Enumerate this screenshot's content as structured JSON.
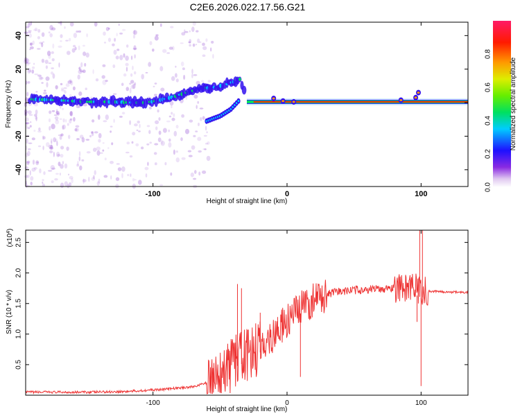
{
  "title": "C2E6.2026.022.17.56.G21",
  "chart_data": [
    {
      "type": "heatmap",
      "xlabel": "Height of straight line (km)",
      "ylabel": "Frequency (Hz)",
      "xlim": [
        -195,
        135
      ],
      "ylim": [
        -50,
        48
      ],
      "xticks": [
        -100,
        0,
        100
      ],
      "xtick_labels": [
        "-100",
        "0",
        "100"
      ],
      "yticks": [
        40,
        20,
        0,
        -20,
        -40
      ],
      "ytick_labels": [
        "40",
        "20",
        "0",
        "-20",
        "-40"
      ],
      "main_band": [
        [
          -190,
          2
        ],
        [
          -170,
          1.5
        ],
        [
          -150,
          0.5
        ],
        [
          -130,
          0.5
        ],
        [
          -115,
          0
        ],
        [
          -105,
          0
        ],
        [
          -95,
          1.5
        ],
        [
          -85,
          3.5
        ],
        [
          -75,
          6
        ],
        [
          -65,
          8.5
        ],
        [
          -55,
          9
        ],
        [
          -45,
          11
        ],
        [
          -35,
          14
        ],
        [
          -30,
          2
        ],
        [
          -20,
          1
        ],
        [
          -10,
          1
        ],
        [
          0,
          0.5
        ],
        [
          10,
          0.5
        ],
        [
          60,
          0.5
        ],
        [
          100,
          0.5
        ],
        [
          130,
          0.5
        ]
      ],
      "side_branch": [
        [
          -60,
          -11
        ],
        [
          -50,
          -8
        ],
        [
          -42,
          -4
        ],
        [
          -35,
          2
        ]
      ],
      "colorbar": {
        "label": "Normalized spectral amplitude",
        "ticks": [
          0.0,
          0.2,
          0.4,
          0.6,
          0.8
        ],
        "tick_labels": [
          "0.0",
          "0.2",
          "0.4",
          "0.6",
          "0.8"
        ],
        "range": [
          0,
          1
        ]
      }
    },
    {
      "type": "line",
      "xlabel": "Height of straight line (km)",
      "ylabel": "SNR (10 * v/v)",
      "ylabel_multiplier": "(x10",
      "ylabel_multiplier_exp": "4",
      "ylabel_multiplier_close": ")",
      "xlim": [
        -195,
        135
      ],
      "ylim": [
        0,
        2.7
      ],
      "xticks": [
        -100,
        0,
        100
      ],
      "xtick_labels": [
        "-100",
        "0",
        "100"
      ],
      "yticks": [
        0.5,
        1.0,
        1.5,
        2.0,
        2.5
      ],
      "ytick_labels": [
        "0.5",
        "1.0",
        "1.5",
        "2.0",
        "2.5"
      ],
      "series": [
        {
          "color": "#ee3333",
          "x": [
            -195,
            -150,
            -120,
            -90,
            -70,
            -60,
            -50,
            -45,
            -40,
            -35,
            -30,
            -25,
            -20,
            -15,
            -10,
            -5,
            0,
            5,
            10,
            15,
            20,
            25,
            30,
            40,
            50,
            60,
            70,
            80,
            90,
            95,
            100,
            105,
            110,
            120,
            135
          ],
          "values": [
            0.05,
            0.05,
            0.06,
            0.1,
            0.14,
            0.2,
            0.3,
            0.4,
            0.55,
            0.6,
            0.65,
            0.7,
            0.8,
            0.9,
            1.0,
            1.1,
            1.2,
            1.3,
            1.4,
            1.5,
            1.55,
            1.6,
            1.65,
            1.7,
            1.72,
            1.73,
            1.74,
            1.75,
            1.75,
            1.75,
            1.7,
            1.7,
            1.7,
            1.69,
            1.68
          ],
          "spikes": [
            [
              -37,
              1.82
            ],
            [
              -34,
              1.75
            ],
            [
              -20,
              1.35
            ],
            [
              -7,
              1.28
            ],
            [
              10,
              0.3
            ],
            [
              100,
              0.15
            ],
            [
              101,
              2.7
            ],
            [
              99,
              2.7
            ],
            [
              97,
              1.2
            ]
          ]
        }
      ]
    }
  ]
}
